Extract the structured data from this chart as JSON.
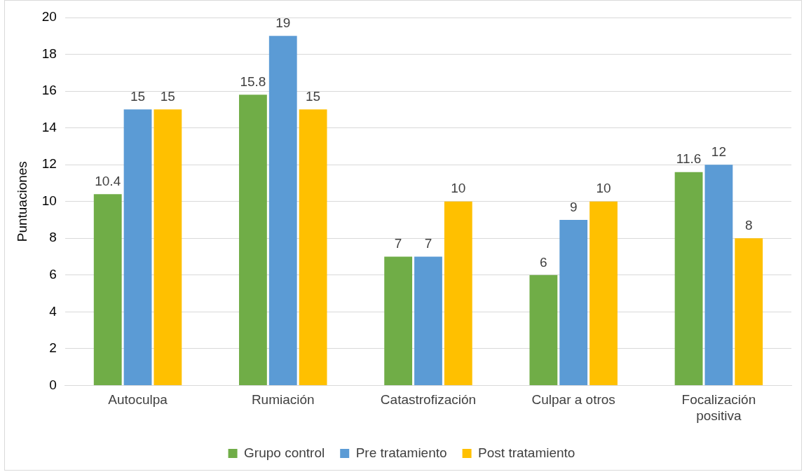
{
  "chart_data": {
    "type": "bar",
    "ylabel": "Puntuaciones",
    "categories": [
      "Autoculpa",
      "Rumiación",
      "Catastrofización",
      "Culpar a otros",
      "Focalización positiva"
    ],
    "series": [
      {
        "name": "Grupo control",
        "color": "#70ad47",
        "values": [
          10.4,
          15.8,
          7,
          6,
          11.6
        ]
      },
      {
        "name": "Pre tratamiento",
        "color": "#5b9bd5",
        "values": [
          15,
          19,
          7,
          9,
          12
        ]
      },
      {
        "name": "Post tratamiento",
        "color": "#ffc000",
        "values": [
          15,
          15,
          10,
          10,
          8
        ]
      }
    ],
    "ylim": [
      0,
      20
    ],
    "yticks": [
      0,
      2,
      4,
      6,
      8,
      10,
      12,
      14,
      16,
      18,
      20
    ],
    "grid": "y",
    "legend": "bottom",
    "data_labels": true
  }
}
